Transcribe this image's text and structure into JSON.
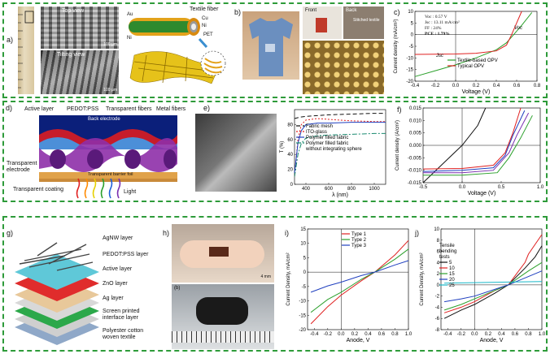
{
  "panels": {
    "a": "a)",
    "b": "b)",
    "c": "c)",
    "d": "d)",
    "e": "e)",
    "f": "f)",
    "g": "g)",
    "h": "h)",
    "i": "i)",
    "j": "j)"
  },
  "row1": {
    "a_top_view": "Top view",
    "a_tilting_view": "Tilting view",
    "a_scale1": "100 μm",
    "a_scale2": "100 μm",
    "a_textile_fiber": "Textile fiber",
    "a_au": "Au",
    "a_cu": "Cu",
    "a_ni1": "Ni",
    "a_ni2": "Ni",
    "a_pet": "PET",
    "b_front": "Front",
    "b_back": "Back",
    "b_stitched": "Stitched textile",
    "c_params": [
      "Voc : 0.57 V",
      "Jsc : 13.11 mA/cm²",
      "FF : 24%",
      "PCE : 1.79%"
    ],
    "c_voc": "Voc",
    "c_jsc": "Jsc"
  },
  "row2": {
    "d_active_layer": "Active layer",
    "d_pedot": "PEDOT:PSS",
    "d_transparent_fibers": "Transparent fibers",
    "d_metal_fibers": "Metal fibers",
    "d_back_electrode": "Back electrode",
    "d_transparent_electrode": "Transparent electrode",
    "d_barrier": "Transparent barrier foil",
    "d_coating": "Transparent coating",
    "d_light": "Light"
  },
  "row3": {
    "g_layers": [
      "AgNW layer",
      "PEDOT:PSS layer",
      "Active layer",
      "ZnO layer",
      "Ag layer",
      "Screen printed interface layer",
      "Polyester cotton woven textile"
    ],
    "h_scale": "4 mm",
    "h_b": "(b)"
  },
  "chart_data": [
    {
      "id": "c",
      "type": "line",
      "xlabel": "Voltage (V)",
      "ylabel": "Current density (mA/cm²)",
      "xlim": [
        -0.4,
        0.8
      ],
      "ylim": [
        -20,
        10
      ],
      "xticks": [
        "-0.4",
        "-0.2",
        "0.0",
        "0.2",
        "0.4",
        "0.6",
        "0.8"
      ],
      "yticks": [
        "10",
        "5",
        "0",
        "-5",
        "-10",
        "-15",
        "-20"
      ],
      "series": [
        {
          "name": "Textile-based OPV",
          "color": "#2ca02c",
          "x": [
            -0.4,
            -0.2,
            0,
            0.2,
            0.4,
            0.5,
            0.57,
            0.65,
            0.75
          ],
          "y": [
            -18,
            -15.5,
            -13,
            -10,
            -6.5,
            -3.5,
            0,
            4,
            9.5
          ]
        },
        {
          "name": "Typical OPV",
          "color": "#e02020",
          "x": [
            -0.4,
            -0.2,
            0,
            0.2,
            0.4,
            0.5,
            0.55,
            0.6,
            0.65
          ],
          "y": [
            -8.5,
            -8.4,
            -8.3,
            -8.0,
            -7.0,
            -4.5,
            0,
            5,
            10
          ]
        }
      ]
    },
    {
      "id": "e",
      "type": "line",
      "xlabel": "λ (nm)",
      "ylabel": "T (%)",
      "xlim": [
        300,
        1100
      ],
      "ylim": [
        0,
        100
      ],
      "xticks": [
        "400",
        "600",
        "800",
        "1000"
      ],
      "yticks": [
        "0",
        "20",
        "40",
        "60",
        "80"
      ],
      "series": [
        {
          "name": "Fabric mesh",
          "color": "#111111",
          "dash": "5,3",
          "x": [
            300,
            350,
            400,
            500,
            600,
            800,
            1000,
            1100
          ],
          "y": [
            88,
            90,
            91,
            92,
            93,
            94,
            95,
            95
          ]
        },
        {
          "name": "ITO-glass",
          "color": "#e02020",
          "dash": "2,2",
          "x": [
            300,
            330,
            360,
            400,
            500,
            600,
            800,
            1000,
            1100
          ],
          "y": [
            10,
            60,
            80,
            86,
            88,
            87,
            85,
            84,
            84
          ]
        },
        {
          "name": "Polymer filled fabric",
          "color": "#1f3fbf",
          "dash": "",
          "x": [
            300,
            330,
            360,
            400,
            500,
            600,
            800,
            1000,
            1100
          ],
          "y": [
            15,
            55,
            72,
            80,
            82,
            82,
            83,
            83,
            83
          ]
        },
        {
          "name": "Polymer filled fabric without integrating sphere",
          "color": "#1a8a70",
          "dash": "6,2,2,2",
          "x": [
            300,
            330,
            360,
            400,
            500,
            600,
            800,
            1000,
            1100
          ],
          "y": [
            10,
            40,
            55,
            62,
            65,
            66,
            67,
            68,
            68
          ]
        }
      ]
    },
    {
      "id": "f",
      "type": "line",
      "xlabel": "Voltage (V)",
      "ylabel": "Current density (A/cm²)",
      "xlim": [
        -0.5,
        1.0
      ],
      "ylim": [
        -0.015,
        0.015
      ],
      "xticks": [
        "-0.5",
        "0.0",
        "0.5",
        "1.0"
      ],
      "yticks": [
        "0.015",
        "0.010",
        "0.005",
        "0.000",
        "-0.005",
        "-0.010",
        "-0.015"
      ],
      "series": [
        {
          "name": "",
          "color": "#111111",
          "x": [
            -0.5,
            -0.2,
            0,
            0.2,
            0.3
          ],
          "y": [
            -0.015,
            -0.006,
            0,
            0.008,
            0.015
          ]
        },
        {
          "name": "",
          "color": "#e02020",
          "x": [
            -0.5,
            0,
            0.4,
            0.55,
            0.65,
            0.75
          ],
          "y": [
            -0.0095,
            -0.0093,
            -0.008,
            -0.003,
            0.005,
            0.015
          ]
        },
        {
          "name": "",
          "color": "#1f3fbf",
          "x": [
            -0.5,
            0,
            0.4,
            0.55,
            0.65,
            0.8
          ],
          "y": [
            -0.0105,
            -0.01,
            -0.009,
            -0.004,
            0.004,
            0.014
          ]
        },
        {
          "name": "",
          "color": "#7a2fb0",
          "x": [
            -0.5,
            0,
            0.4,
            0.6,
            0.7,
            0.85
          ],
          "y": [
            -0.011,
            -0.011,
            -0.01,
            -0.003,
            0.004,
            0.013
          ]
        },
        {
          "name": "",
          "color": "#2ca02c",
          "x": [
            -0.5,
            0,
            0.45,
            0.6,
            0.75,
            0.9
          ],
          "y": [
            -0.012,
            -0.012,
            -0.011,
            -0.005,
            0.003,
            0.012
          ]
        }
      ]
    },
    {
      "id": "i",
      "type": "line",
      "xlabel": "Anode, V",
      "ylabel": "Current Density, mA/cm²",
      "xlim": [
        -0.5,
        1.0
      ],
      "ylim": [
        -20,
        15
      ],
      "xticks": [
        "-0.4",
        "-0.2",
        "0.0",
        "0.2",
        "0.4",
        "0.6",
        "0.8",
        "1.0"
      ],
      "yticks": [
        "15",
        "10",
        "5",
        "0",
        "-5",
        "-10",
        "-15",
        "-20"
      ],
      "series": [
        {
          "name": "Type 1",
          "color": "#e02020",
          "x": [
            -0.45,
            -0.2,
            0,
            0.3,
            0.5,
            0.8,
            1.0
          ],
          "y": [
            -18,
            -12,
            -8,
            -3,
            0,
            6,
            11
          ]
        },
        {
          "name": "Type 2",
          "color": "#2ca02c",
          "x": [
            -0.45,
            -0.2,
            0,
            0.3,
            0.5,
            0.8,
            1.0
          ],
          "y": [
            -14,
            -9.5,
            -7,
            -2.5,
            0,
            4.5,
            8
          ]
        },
        {
          "name": "Type 3",
          "color": "#1f3fbf",
          "x": [
            -0.45,
            -0.2,
            0,
            0.3,
            0.5,
            0.8,
            1.0
          ],
          "y": [
            -7,
            -4.8,
            -3.5,
            -1.2,
            0,
            2.5,
            4
          ]
        }
      ]
    },
    {
      "id": "j",
      "type": "line",
      "title": "Tensile bending tests",
      "xlabel": "Anode, V",
      "ylabel": "Current Density, mA/cm²",
      "xlim": [
        -0.5,
        1.0
      ],
      "ylim": [
        -8,
        10
      ],
      "xticks": [
        "-0.4",
        "-0.2",
        "0.0",
        "0.2",
        "0.4",
        "0.6",
        "0.8",
        "1.0"
      ],
      "yticks": [
        "10",
        "8",
        "6",
        "4",
        "2",
        "0",
        "-2",
        "-4",
        "-6",
        "-8"
      ],
      "series": [
        {
          "name": "5",
          "color": "#111111",
          "x": [
            -0.45,
            -0.2,
            0,
            0.3,
            0.5,
            0.75,
            0.9,
            1.0
          ],
          "y": [
            -6,
            -4.5,
            -3.5,
            -1.5,
            0,
            3,
            5,
            7
          ]
        },
        {
          "name": "10",
          "color": "#e02020",
          "x": [
            -0.45,
            -0.2,
            0,
            0.3,
            0.5,
            0.75,
            0.8,
            1.0
          ],
          "y": [
            -5,
            -4,
            -3,
            -1,
            0,
            4,
            5.5,
            9
          ]
        },
        {
          "name": "15",
          "color": "#2ca02c",
          "x": [
            -0.45,
            -0.2,
            0,
            0.3,
            0.5,
            0.8,
            1.0
          ],
          "y": [
            -4.5,
            -3.5,
            -2.5,
            -1,
            0,
            2.5,
            4
          ]
        },
        {
          "name": "20",
          "color": "#1f3fbf",
          "x": [
            -0.45,
            -0.2,
            0,
            0.3,
            0.5,
            0.8,
            1.0
          ],
          "y": [
            -3,
            -2.5,
            -2,
            -0.8,
            0,
            1.5,
            2.5
          ]
        },
        {
          "name": "25",
          "color": "#18b8c8",
          "x": [
            -0.45,
            0,
            0.5,
            1.0
          ],
          "y": [
            0.3,
            0.4,
            0.5,
            0.6
          ]
        }
      ]
    }
  ]
}
